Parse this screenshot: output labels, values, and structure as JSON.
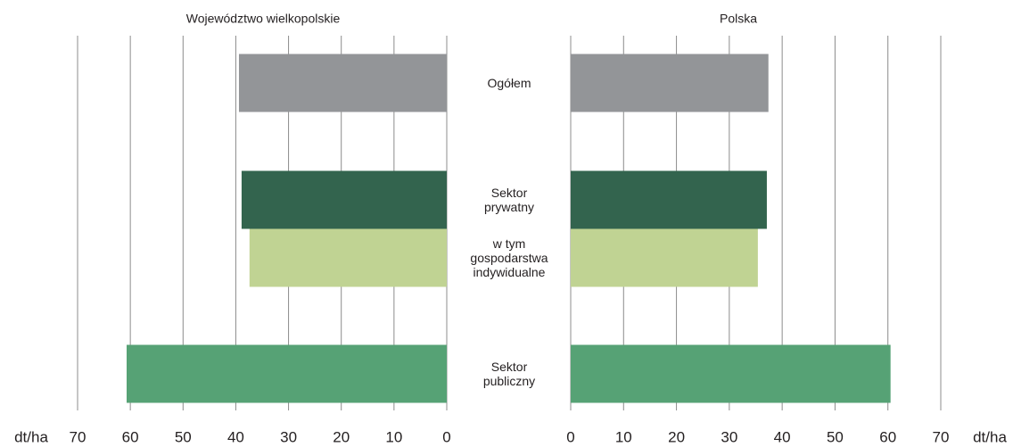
{
  "chart_data": {
    "type": "bar",
    "orientation": "horizontal",
    "categories": [
      "Ogółem",
      "Sektor\nprywatny",
      "w tym\ngospodarstwa\nindywidualne",
      "Sektor\npubliczny"
    ],
    "colors": [
      "#939598",
      "#33644e",
      "#c0d393",
      "#56a275"
    ],
    "series": [
      {
        "name": "Województwo wielkopolskie",
        "side": "left",
        "values": [
          39.4,
          38.9,
          37.4,
          60.7
        ]
      },
      {
        "name": "Polska",
        "side": "right",
        "values": [
          37.4,
          37.1,
          35.4,
          60.5
        ]
      }
    ],
    "xlim": [
      0,
      70
    ],
    "xticks": [
      0,
      10,
      20,
      30,
      40,
      50,
      60,
      70
    ],
    "x_label": "dt/ha",
    "grid": true
  }
}
